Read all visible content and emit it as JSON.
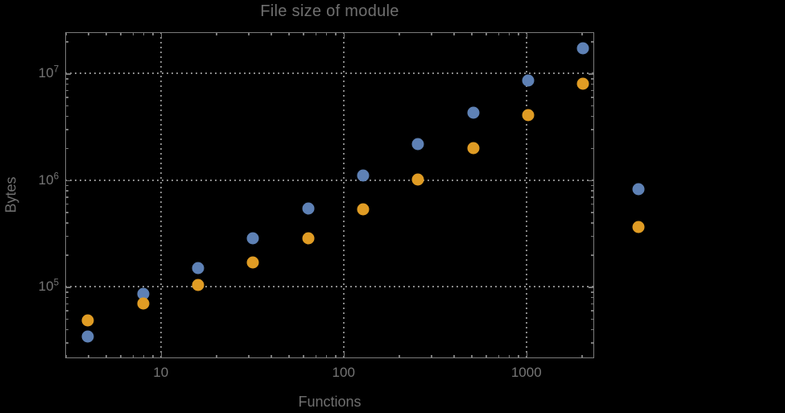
{
  "colors": {
    "background": "#000000",
    "frame": "#7b7b7b",
    "grid": "#878787",
    "text": "#6f6f6f",
    "series_blue": "#5E81B5",
    "series_orange": "#E09C24"
  },
  "chart_data": {
    "type": "scatter",
    "title": "File size of module",
    "xlabel": "Functions",
    "ylabel": "Bytes",
    "x_scale": "log",
    "y_scale": "log",
    "xlim": [
      3.0,
      2350
    ],
    "ylim": [
      21300,
      24300000
    ],
    "grid": "dotted, at decade lines only",
    "legend": "none",
    "marker": "filled circle",
    "x": [
      4,
      8,
      16,
      32,
      64,
      128,
      256,
      512,
      1024,
      2048,
      4096
    ],
    "series": [
      {
        "name": "series-1-blue",
        "color": "#5E81B5",
        "values": [
          34000,
          86000,
          150000,
          284000,
          540000,
          1100000,
          2170000,
          4300000,
          8600000,
          17200000,
          820000
        ]
      },
      {
        "name": "series-2-orange",
        "color": "#E09C24",
        "values": [
          48000,
          69000,
          104000,
          168000,
          284000,
          530000,
          1010000,
          2000000,
          4080000,
          8050000,
          360000
        ]
      }
    ],
    "x_ticks": [
      {
        "label": "10",
        "value": 10
      },
      {
        "label": "100",
        "value": 100
      },
      {
        "label": "1000",
        "value": 1000
      }
    ],
    "y_ticks": [
      {
        "mantissa": "10",
        "exponent": "5",
        "value": 100000
      },
      {
        "mantissa": "10",
        "exponent": "6",
        "value": 1000000
      },
      {
        "mantissa": "10",
        "exponent": "7",
        "value": 10000000
      }
    ],
    "notes": "points at x=4096 lie outside the plot frame (not clipped)"
  }
}
